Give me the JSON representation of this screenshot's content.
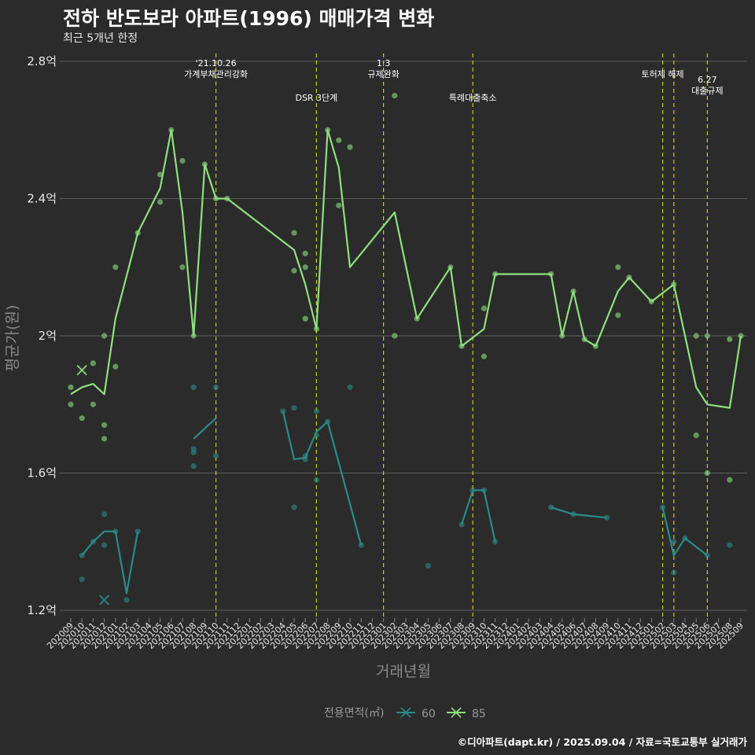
{
  "header": {
    "title": "전하 반도보라 아파트(1996) 매매가격 변화",
    "subtitle": "최근 5개년 한정"
  },
  "footer": "©디아파트(dapt.kr) / 2025.09.04 / 자료=국토교통부 실거래가",
  "colors": {
    "s60": "#2a8b88",
    "s85": "#8ee07e",
    "event": "#c8c832",
    "grid": "#5e5e5e",
    "background": "#2b2b2b"
  },
  "chart_data": {
    "type": "line",
    "title": "전하 반도보라 아파트(1996) 매매가격 변화",
    "subtitle": "최근 5개년 한정",
    "xlabel": "거래년월",
    "ylabel": "평균가(원)",
    "ylim": [
      1.17,
      2.84
    ],
    "yticks": [
      {
        "value": 1.2,
        "label": "1.2억"
      },
      {
        "value": 1.6,
        "label": "1.6억"
      },
      {
        "value": 2.0,
        "label": "2억"
      },
      {
        "value": 2.4,
        "label": "2.4억"
      },
      {
        "value": 2.8,
        "label": "2.8억"
      }
    ],
    "categories": [
      "202009",
      "202010",
      "202011",
      "202012",
      "202101",
      "202102",
      "202103",
      "202104",
      "202105",
      "202106",
      "202107",
      "202108",
      "202109",
      "202110",
      "202111",
      "202112",
      "202201",
      "202202",
      "202203",
      "202204",
      "202205",
      "202206",
      "202207",
      "202208",
      "202209",
      "202210",
      "202211",
      "202212",
      "202301",
      "202302",
      "202303",
      "202304",
      "202305",
      "202306",
      "202307",
      "202308",
      "202309",
      "202310",
      "202311",
      "202312",
      "202401",
      "202402",
      "202403",
      "202404",
      "202405",
      "202406",
      "202407",
      "202408",
      "202409",
      "202410",
      "202411",
      "202412",
      "202501",
      "202502",
      "202503",
      "202504",
      "202505",
      "202506",
      "202507",
      "202508",
      "202509"
    ],
    "legend": {
      "title": "전용면적(㎡)",
      "position": "bottom",
      "entries": [
        "60",
        "85"
      ]
    },
    "grid": true,
    "events": [
      {
        "x": "202110",
        "lines": [
          "'21.10.26",
          "가계부채관리강화"
        ],
        "row": 0
      },
      {
        "x": "202207",
        "lines": [
          "DSR 3단계"
        ],
        "row": 1
      },
      {
        "x": "202301",
        "lines": [
          "1.3",
          "규제완화"
        ],
        "row": 0
      },
      {
        "x": "202309",
        "lines": [
          "특례대출축소"
        ],
        "row": 1
      },
      {
        "x": "202502",
        "lines": [
          "토허제 해제"
        ],
        "row": 0
      },
      {
        "x": "202503",
        "lines": [],
        "row": 0
      },
      {
        "x": "202506",
        "lines": [
          "6.27",
          "대출규제"
        ],
        "row": 2
      }
    ],
    "series": [
      {
        "name": "60",
        "line_segments": [
          [
            [
              "202010",
              1.36
            ],
            [
              "202011",
              1.4
            ],
            [
              "202012",
              1.43
            ],
            [
              "202101",
              1.43
            ],
            [
              "202102",
              1.25
            ],
            [
              "202103",
              1.43
            ]
          ],
          [
            [
              "202108",
              1.7
            ],
            [
              "202110",
              1.76
            ]
          ],
          [
            [
              "202204",
              1.78
            ],
            [
              "202205",
              1.64
            ],
            [
              "202206",
              1.645
            ],
            [
              "202207",
              1.72
            ],
            [
              "202208",
              1.75
            ],
            [
              "202211",
              1.39
            ]
          ],
          [
            [
              "202308",
              1.45
            ],
            [
              "202309",
              1.55
            ],
            [
              "202310",
              1.55
            ],
            [
              "202311",
              1.4
            ]
          ],
          [
            [
              "202404",
              1.5
            ],
            [
              "202406",
              1.48
            ],
            [
              "202409",
              1.47
            ]
          ],
          [
            [
              "202502",
              1.5
            ],
            [
              "202503",
              1.36
            ],
            [
              "202504",
              1.41
            ],
            [
              "202506",
              1.36
            ]
          ]
        ],
        "points": [
          [
            "202010",
            1.36
          ],
          [
            "202010",
            1.29
          ],
          [
            "202011",
            1.4
          ],
          [
            "202012",
            1.48
          ],
          [
            "202012",
            1.39
          ],
          [
            "202101",
            1.43
          ],
          [
            "202102",
            1.23
          ],
          [
            "202103",
            1.43
          ],
          [
            "202108",
            1.85
          ],
          [
            "202108",
            1.67
          ],
          [
            "202108",
            1.66
          ],
          [
            "202108",
            1.62
          ],
          [
            "202110",
            1.85
          ],
          [
            "202110",
            1.65
          ],
          [
            "202204",
            1.78
          ],
          [
            "202205",
            1.79
          ],
          [
            "202205",
            1.5
          ],
          [
            "202206",
            1.64
          ],
          [
            "202206",
            1.65
          ],
          [
            "202207",
            1.78
          ],
          [
            "202207",
            1.71
          ],
          [
            "202207",
            1.58
          ],
          [
            "202208",
            1.75
          ],
          [
            "202210",
            1.85
          ],
          [
            "202211",
            1.39
          ],
          [
            "202305",
            1.33
          ],
          [
            "202308",
            1.45
          ],
          [
            "202309",
            1.55
          ],
          [
            "202310",
            1.55
          ],
          [
            "202311",
            1.4
          ],
          [
            "202404",
            1.5
          ],
          [
            "202406",
            1.48
          ],
          [
            "202409",
            1.47
          ],
          [
            "202502",
            1.5
          ],
          [
            "202503",
            1.4
          ],
          [
            "202503",
            1.31
          ],
          [
            "202504",
            1.41
          ],
          [
            "202506",
            1.36
          ],
          [
            "202508",
            1.39
          ]
        ],
        "outliers": [
          [
            "202012",
            1.23
          ]
        ]
      },
      {
        "name": "85",
        "line_segments": [
          [
            [
              "202009",
              1.83
            ],
            [
              "202010",
              1.85
            ],
            [
              "202011",
              1.86
            ],
            [
              "202012",
              1.83
            ],
            [
              "202101",
              2.05
            ],
            [
              "202103",
              2.3
            ],
            [
              "202105",
              2.43
            ],
            [
              "202106",
              2.6
            ],
            [
              "202107",
              2.36
            ],
            [
              "202108",
              2.0
            ],
            [
              "202109",
              2.5
            ],
            [
              "202110",
              2.4
            ],
            [
              "202111",
              2.4
            ],
            [
              "202205",
              2.25
            ],
            [
              "202206",
              2.15
            ],
            [
              "202207",
              2.02
            ],
            [
              "202208",
              2.6
            ],
            [
              "202209",
              2.49
            ],
            [
              "202210",
              2.2
            ],
            [
              "202302",
              2.36
            ],
            [
              "202304",
              2.05
            ],
            [
              "202307",
              2.2
            ],
            [
              "202308",
              1.97
            ],
            [
              "202310",
              2.02
            ],
            [
              "202311",
              2.18
            ],
            [
              "202404",
              2.18
            ],
            [
              "202405",
              2.0
            ],
            [
              "202406",
              2.13
            ],
            [
              "202407",
              1.99
            ],
            [
              "202408",
              1.97
            ],
            [
              "202410",
              2.13
            ],
            [
              "202411",
              2.17
            ],
            [
              "202501",
              2.1
            ],
            [
              "202503",
              2.15
            ],
            [
              "202505",
              1.85
            ],
            [
              "202506",
              1.8
            ],
            [
              "202508",
              1.79
            ],
            [
              "202509",
              2.0
            ]
          ]
        ],
        "points": [
          [
            "202009",
            1.85
          ],
          [
            "202009",
            1.8
          ],
          [
            "202010",
            1.76
          ],
          [
            "202011",
            1.92
          ],
          [
            "202011",
            1.8
          ],
          [
            "202012",
            2.0
          ],
          [
            "202012",
            1.74
          ],
          [
            "202012",
            1.7
          ],
          [
            "202101",
            2.2
          ],
          [
            "202101",
            1.91
          ],
          [
            "202103",
            2.3
          ],
          [
            "202105",
            2.47
          ],
          [
            "202105",
            2.39
          ],
          [
            "202106",
            2.6
          ],
          [
            "202107",
            2.51
          ],
          [
            "202107",
            2.2
          ],
          [
            "202108",
            2.0
          ],
          [
            "202109",
            2.5
          ],
          [
            "202110",
            2.4
          ],
          [
            "202111",
            2.4
          ],
          [
            "202205",
            2.3
          ],
          [
            "202205",
            2.19
          ],
          [
            "202206",
            2.24
          ],
          [
            "202206",
            2.2
          ],
          [
            "202206",
            2.05
          ],
          [
            "202207",
            2.02
          ],
          [
            "202208",
            2.6
          ],
          [
            "202209",
            2.57
          ],
          [
            "202209",
            2.38
          ],
          [
            "202210",
            2.55
          ],
          [
            "202302",
            2.7
          ],
          [
            "202302",
            2.0
          ],
          [
            "202304",
            2.05
          ],
          [
            "202307",
            2.2
          ],
          [
            "202308",
            1.97
          ],
          [
            "202310",
            2.08
          ],
          [
            "202310",
            1.94
          ],
          [
            "202311",
            2.18
          ],
          [
            "202404",
            2.18
          ],
          [
            "202405",
            2.0
          ],
          [
            "202406",
            2.13
          ],
          [
            "202407",
            1.99
          ],
          [
            "202408",
            1.97
          ],
          [
            "202410",
            2.2
          ],
          [
            "202410",
            2.06
          ],
          [
            "202411",
            2.17
          ],
          [
            "202501",
            2.1
          ],
          [
            "202503",
            2.15
          ],
          [
            "202505",
            2.0
          ],
          [
            "202505",
            1.71
          ],
          [
            "202506",
            2.0
          ],
          [
            "202506",
            1.6
          ],
          [
            "202508",
            1.99
          ],
          [
            "202508",
            1.58
          ],
          [
            "202509",
            2.0
          ]
        ],
        "outliers": [
          [
            "202010",
            1.9
          ]
        ]
      }
    ]
  }
}
